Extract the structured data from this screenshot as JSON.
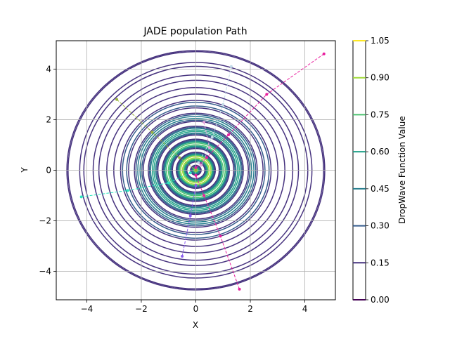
{
  "chart_data": {
    "type": "contour",
    "title": "JADE population Path",
    "xlabel": "X",
    "ylabel": "Y",
    "xlim": [
      -5.12,
      5.12
    ],
    "ylim": [
      -5.12,
      5.12
    ],
    "xticks": [
      -4,
      -2,
      0,
      2,
      4
    ],
    "yticks": [
      -4,
      -2,
      0,
      2,
      4
    ],
    "grid": true,
    "contour_function": "DropWave",
    "contour_levels": [
      0.0,
      0.15,
      0.3,
      0.45,
      0.6,
      0.75,
      0.9,
      1.05
    ],
    "contour_level_colors": [
      "#440154",
      "#46327e",
      "#365c8d",
      "#277f8e",
      "#1fa187",
      "#4ac16d",
      "#a0da39",
      "#fde725"
    ],
    "colorbar": {
      "label": "DropWave Function Value",
      "ticks": [
        "0.00",
        "0.15",
        "0.30",
        "0.45",
        "0.60",
        "0.75",
        "0.90",
        "1.05"
      ]
    },
    "paths": [
      {
        "color": "#e91e9e",
        "points": [
          [
            4.7,
            4.6
          ],
          [
            2.6,
            3.0
          ],
          [
            1.2,
            1.4
          ],
          [
            0.4,
            0.5
          ],
          [
            0.0,
            0.1
          ]
        ]
      },
      {
        "color": "#e91e9e",
        "points": [
          [
            1.6,
            -4.7
          ],
          [
            0.9,
            -2.6
          ],
          [
            0.3,
            -1.0
          ],
          [
            0.0,
            -0.2
          ]
        ]
      },
      {
        "color": "#9ab43c",
        "points": [
          [
            -2.9,
            2.8
          ],
          [
            -1.6,
            1.5
          ],
          [
            -0.6,
            0.5
          ],
          [
            0.0,
            0.0
          ]
        ]
      },
      {
        "color": "#2ee6c0",
        "points": [
          [
            -4.2,
            -1.05
          ],
          [
            -2.5,
            -0.8
          ],
          [
            -1.0,
            -0.5
          ],
          [
            -0.2,
            -0.1
          ]
        ]
      },
      {
        "color": "#c4dbe8",
        "points": [
          [
            1.3,
            4.1
          ],
          [
            1.0,
            2.6
          ],
          [
            0.6,
            1.3
          ],
          [
            0.1,
            0.3
          ]
        ]
      },
      {
        "color": "#8a5cf0",
        "points": [
          [
            -0.5,
            -3.4
          ],
          [
            -0.2,
            -1.8
          ],
          [
            0.0,
            -0.6
          ]
        ]
      },
      {
        "color": "#e0a0d8",
        "points": [
          [
            0.3,
            1.9
          ],
          [
            0.5,
            0.9
          ],
          [
            0.2,
            0.2
          ]
        ]
      }
    ]
  }
}
